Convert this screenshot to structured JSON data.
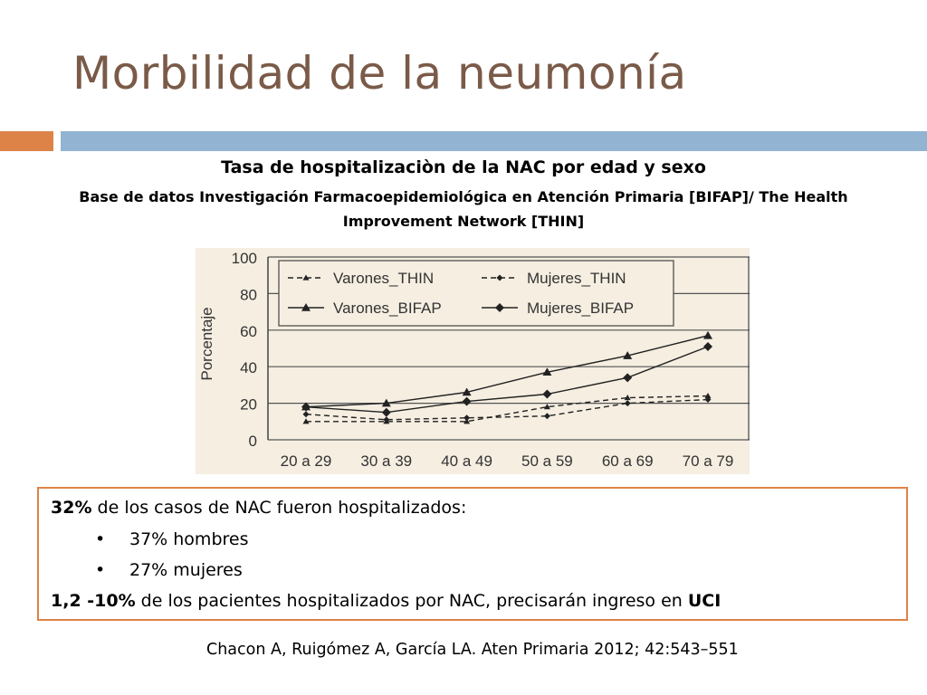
{
  "slide": {
    "title": "Morbilidad de la neumonía",
    "subtitle": "Tasa de hospitalizaciòn de la NAC por edad y sexo",
    "subtitle2": "Base de datos Investigación Farmacoepidemiológica en Atención Primaria [BIFAP]/ The Health Improvement Network  [THIN]",
    "accent_orange": "#dd8348",
    "accent_blue": "#92b4d2",
    "title_color": "#7a5a48"
  },
  "info": {
    "line1_bold": "32%",
    "line1_text": " de los casos de NAC fueron hospitalizados:",
    "bullets": [
      "37% hombres",
      "27% mujeres"
    ],
    "line4_bold": "1,2 -10%",
    "line4_text": " de los pacientes hospitalizados por NAC, precisarán ingreso en ",
    "line4_bold_end": "UCI"
  },
  "citation": "Chacon A, Ruigómez A, García LA. Aten Primaria 2012; 42:543–551",
  "chart_data": {
    "type": "line",
    "title": "",
    "xlabel": "",
    "ylabel": "Porcentaje",
    "categories": [
      "20 a 29",
      "30 a 39",
      "40 a 49",
      "50 a 59",
      "60 a 69",
      "70 a 79"
    ],
    "ylim": [
      0,
      100
    ],
    "yticks": [
      0,
      20,
      40,
      60,
      80,
      100
    ],
    "grid": true,
    "legend_position": "top",
    "series": [
      {
        "name": "Varones_THIN",
        "style": "dashed",
        "marker": "small-triangle",
        "values": [
          10,
          10,
          10,
          18,
          23,
          24
        ]
      },
      {
        "name": "Mujeres_THIN",
        "style": "dashed",
        "marker": "small-diamond",
        "values": [
          14,
          11,
          12,
          13,
          20,
          22
        ]
      },
      {
        "name": "Varones_BIFAP",
        "style": "solid",
        "marker": "triangle",
        "values": [
          18,
          20,
          26,
          37,
          46,
          57
        ]
      },
      {
        "name": "Mujeres_BIFAP",
        "style": "solid",
        "marker": "diamond",
        "values": [
          18,
          15,
          21,
          25,
          34,
          51
        ]
      }
    ]
  }
}
